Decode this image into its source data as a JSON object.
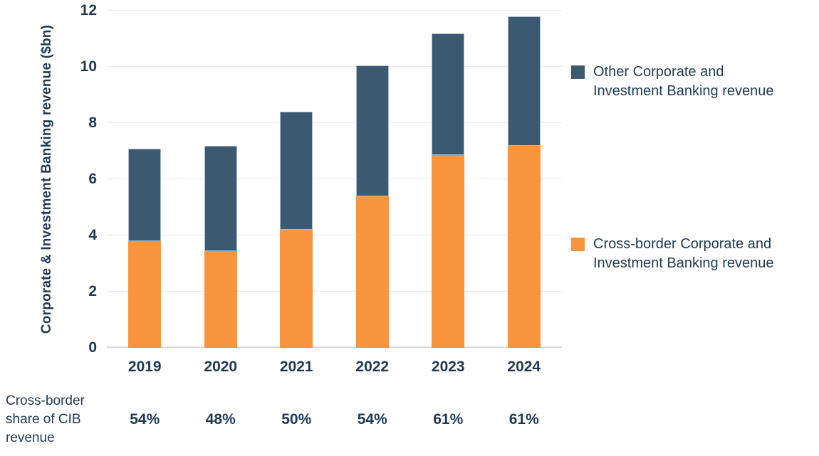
{
  "colors": {
    "cross_border": "#f9953e",
    "other": "#3b5a72",
    "other_stroke": "#a9bccb",
    "text": "#1f3a55",
    "gridline": "#ececec",
    "axis_line": "#d9d9d9"
  },
  "chart_data": {
    "type": "bar",
    "stacked": true,
    "title": "",
    "ylabel": "Corporate & Investment Banking revenue ($bn)",
    "xlabel": "",
    "categories": [
      "2019",
      "2020",
      "2021",
      "2022",
      "2023",
      "2024"
    ],
    "series": [
      {
        "name": "Cross-border Corporate and Investment Banking revenue",
        "color_key": "cross_border",
        "values": [
          3.8,
          3.45,
          4.2,
          5.4,
          6.85,
          7.2
        ]
      },
      {
        "name": "Other Corporate and Investment Banking revenue",
        "color_key": "other",
        "values": [
          3.3,
          3.75,
          4.2,
          4.65,
          4.35,
          4.6
        ]
      }
    ],
    "totals": [
      7.1,
      7.2,
      8.4,
      10.05,
      11.2,
      11.8
    ],
    "yticks": [
      0,
      2,
      4,
      6,
      8,
      10,
      12
    ],
    "ylim": [
      0,
      12
    ],
    "grid": true,
    "legend_position": "right"
  },
  "legend": {
    "item_other": "Other Corporate and Investment Banking revenue",
    "item_cross_border": "Cross-border Corporate and Investment Banking revenue"
  },
  "footer": {
    "row_label": "Cross-border share of CIB revenue",
    "values": [
      "54%",
      "48%",
      "50%",
      "54%",
      "61%",
      "61%"
    ]
  }
}
